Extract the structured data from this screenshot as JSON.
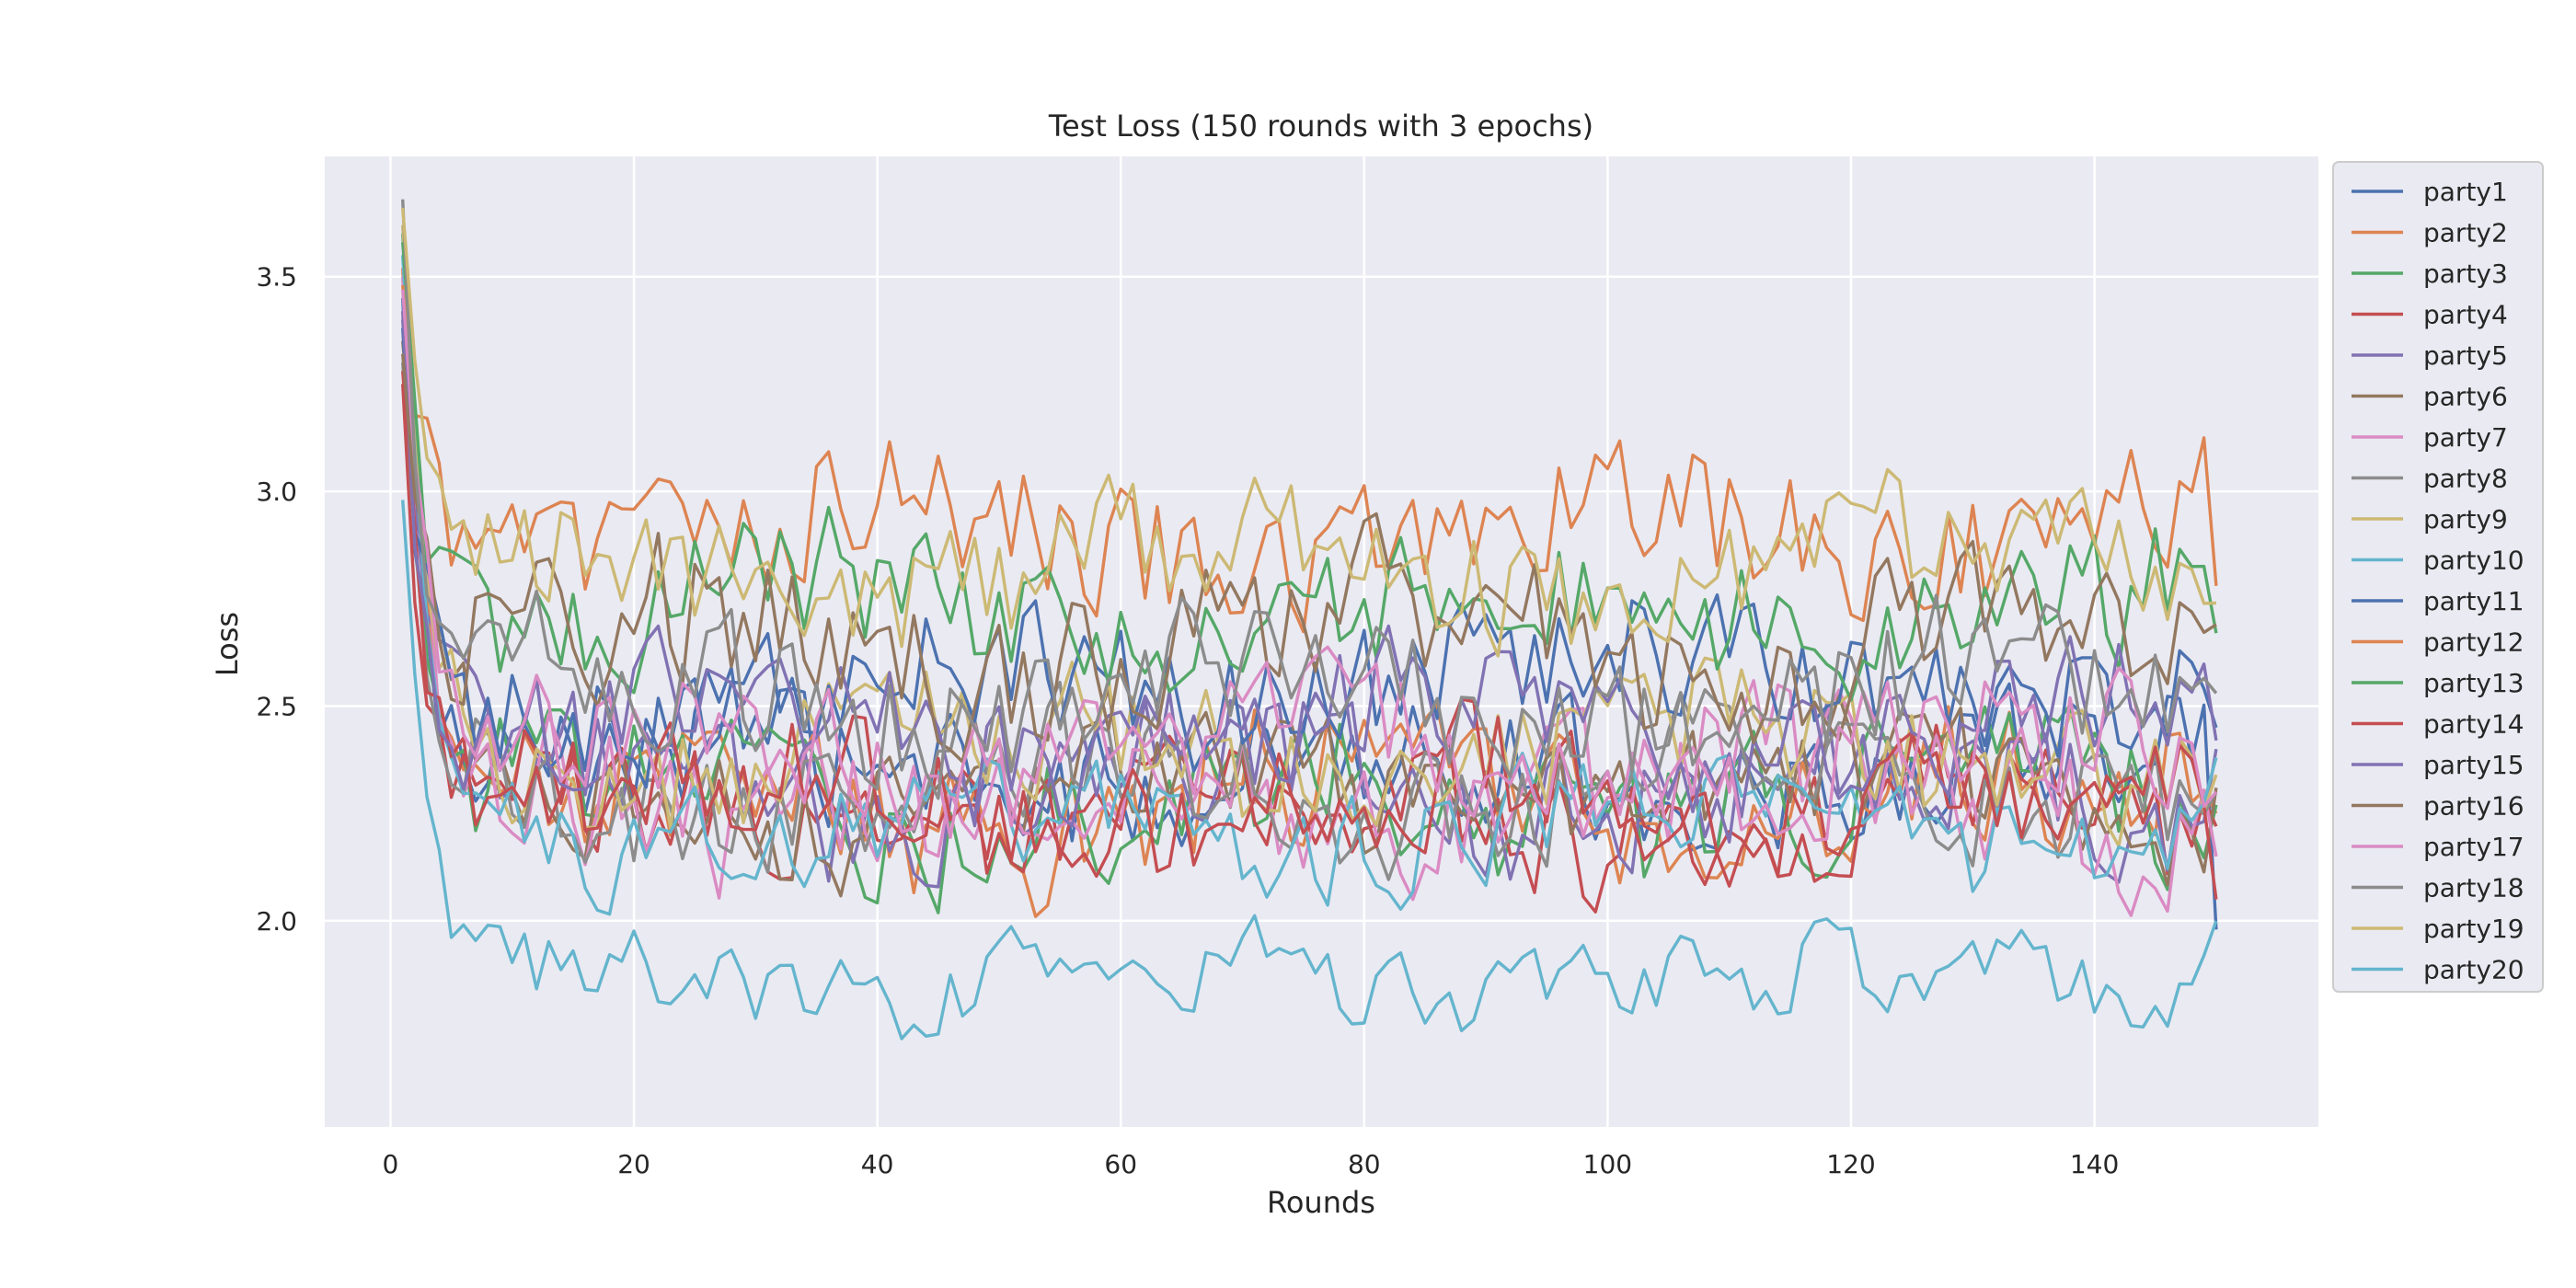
{
  "chart_data": {
    "type": "line",
    "title": "Test Loss (150 rounds with 3 epochs)",
    "xlabel": "Rounds",
    "ylabel": "Loss",
    "xlim": [
      -5.4,
      158.4
    ],
    "ylim": [
      1.52,
      3.78
    ],
    "xticks": [
      0,
      20,
      40,
      60,
      80,
      100,
      120,
      140
    ],
    "yticks": [
      2.0,
      2.5,
      3.0,
      3.5
    ],
    "xtick_labels": [
      "0",
      "20",
      "40",
      "60",
      "80",
      "100",
      "120",
      "140"
    ],
    "ytick_labels": [
      "2.0",
      "2.5",
      "3.0",
      "3.5"
    ],
    "grid": true,
    "legend_position": "outside right, top",
    "background_color": "#eaeaf2",
    "grid_color": "#ffffff",
    "x_range": [
      1,
      150
    ],
    "series": [
      {
        "name": "party1",
        "color": "#4c72b0",
        "start": 3.45,
        "level": 2.35,
        "amp": 0.12,
        "min": 1.98,
        "end": 1.98
      },
      {
        "name": "party2",
        "color": "#dd8452",
        "start": 3.52,
        "level": 2.28,
        "amp": 0.14,
        "min": 1.96,
        "end": 2.25
      },
      {
        "name": "party3",
        "color": "#55a868",
        "start": 3.6,
        "level": 2.28,
        "amp": 0.13,
        "min": 1.91,
        "end": 2.27
      },
      {
        "name": "party4",
        "color": "#c44e52",
        "start": 3.25,
        "level": 2.25,
        "amp": 0.12,
        "min": 2.0,
        "end": 2.22
      },
      {
        "name": "party5",
        "color": "#8172b3",
        "start": 3.4,
        "level": 2.32,
        "amp": 0.13,
        "min": 1.96,
        "end": 2.4
      },
      {
        "name": "party6",
        "color": "#937860",
        "start": 3.35,
        "level": 2.3,
        "amp": 0.12,
        "min": 1.98,
        "end": 2.31
      },
      {
        "name": "party7",
        "color": "#da8bc3",
        "start": 3.5,
        "level": 2.3,
        "amp": 0.14,
        "min": 1.75,
        "end": 2.15
      },
      {
        "name": "party8",
        "color": "#8c8c8c",
        "start": 3.3,
        "level": 2.32,
        "amp": 0.12,
        "min": 2.0,
        "end": 2.3
      },
      {
        "name": "party9",
        "color": "#ccb974",
        "start": 3.62,
        "level": 2.4,
        "amp": 0.12,
        "min": 2.1,
        "end": 2.34
      },
      {
        "name": "party10",
        "color": "#64b5cd",
        "start": 3.55,
        "level": 2.22,
        "amp": 0.1,
        "min": 2.0,
        "end": 2.38
      },
      {
        "name": "party11",
        "color": "#4c72b0",
        "start": 3.38,
        "level": 2.55,
        "amp": 0.13,
        "min": 2.0,
        "end": 2.45
      },
      {
        "name": "party12",
        "color": "#dd8452",
        "start": 3.48,
        "level": 2.92,
        "amp": 0.13,
        "min": 2.6,
        "end": 2.78
      },
      {
        "name": "party13",
        "color": "#55a868",
        "start": 3.58,
        "level": 2.72,
        "amp": 0.13,
        "min": 2.3,
        "end": 2.67
      },
      {
        "name": "party14",
        "color": "#c44e52",
        "start": 3.28,
        "level": 2.28,
        "amp": 0.12,
        "min": 1.95,
        "end": 2.05
      },
      {
        "name": "party15",
        "color": "#8172b3",
        "start": 3.42,
        "level": 2.45,
        "amp": 0.12,
        "min": 1.95,
        "end": 2.42
      },
      {
        "name": "party16",
        "color": "#937860",
        "start": 3.32,
        "level": 2.65,
        "amp": 0.14,
        "min": 2.2,
        "end": 2.69
      },
      {
        "name": "party17",
        "color": "#da8bc3",
        "start": 3.47,
        "level": 2.38,
        "amp": 0.12,
        "min": 1.95,
        "end": 2.3
      },
      {
        "name": "party18",
        "color": "#8c8c8c",
        "start": 3.68,
        "level": 2.52,
        "amp": 0.13,
        "min": 2.1,
        "end": 2.53
      },
      {
        "name": "party19",
        "color": "#ccb974",
        "start": 3.66,
        "level": 2.82,
        "amp": 0.12,
        "min": 2.45,
        "end": 2.74
      },
      {
        "name": "party20",
        "color": "#64b5cd",
        "start": 2.98,
        "level": 1.86,
        "amp": 0.08,
        "min": 1.63,
        "end": 2.0
      }
    ]
  }
}
